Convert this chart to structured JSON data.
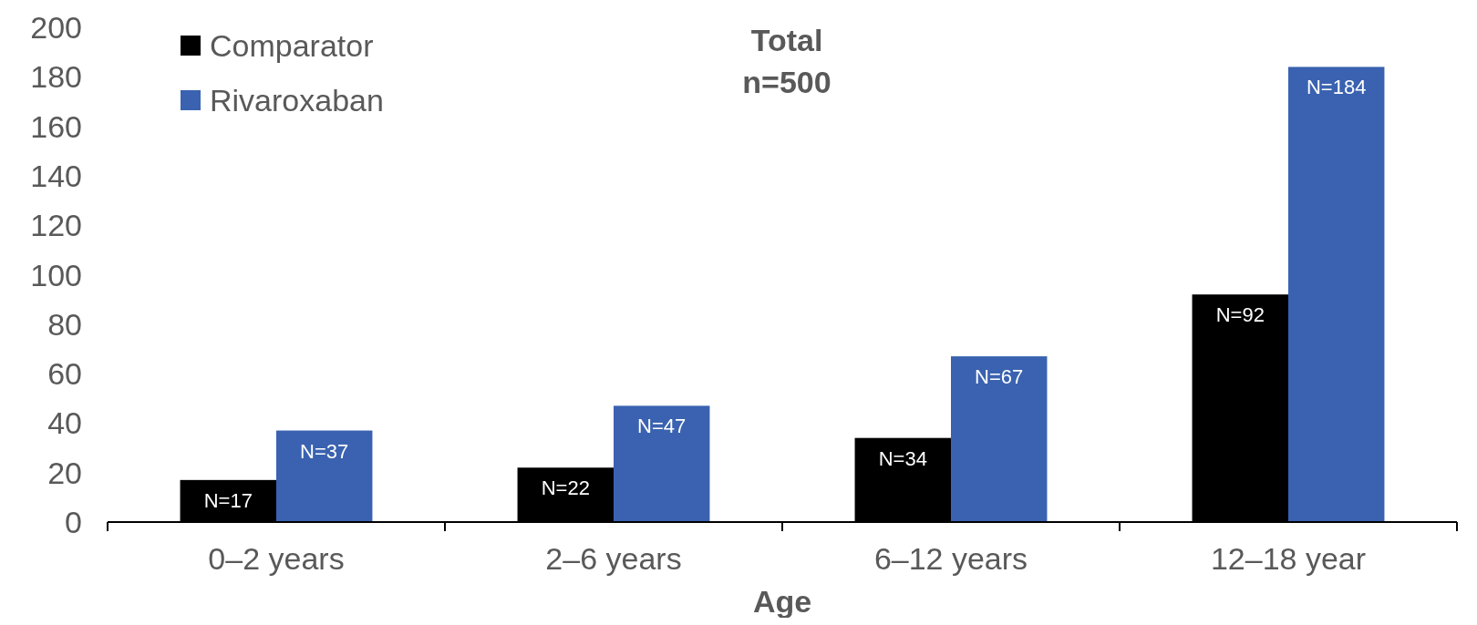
{
  "chart_data": {
    "type": "bar",
    "title": "Total",
    "subtitle": "n=500",
    "xlabel": "Age",
    "categories": [
      "0–2 years",
      "2–6 years",
      "6–12 years",
      "12–18 year"
    ],
    "series": [
      {
        "name": "Comparator",
        "color": "#000000",
        "values": [
          17,
          22,
          34,
          92
        ],
        "value_labels": [
          "N=17",
          "N=22",
          "N=34",
          "N=92"
        ]
      },
      {
        "name": "Rivaroxaban",
        "color": "#3a62b0",
        "values": [
          37,
          47,
          67,
          184
        ],
        "value_labels": [
          "N=37",
          "N=47",
          "N=67",
          "N=184"
        ]
      }
    ],
    "ylim": [
      0,
      200
    ],
    "yticks": [
      0,
      20,
      40,
      60,
      80,
      100,
      120,
      140,
      160,
      180,
      200
    ],
    "grid": false,
    "legend": "top left"
  }
}
